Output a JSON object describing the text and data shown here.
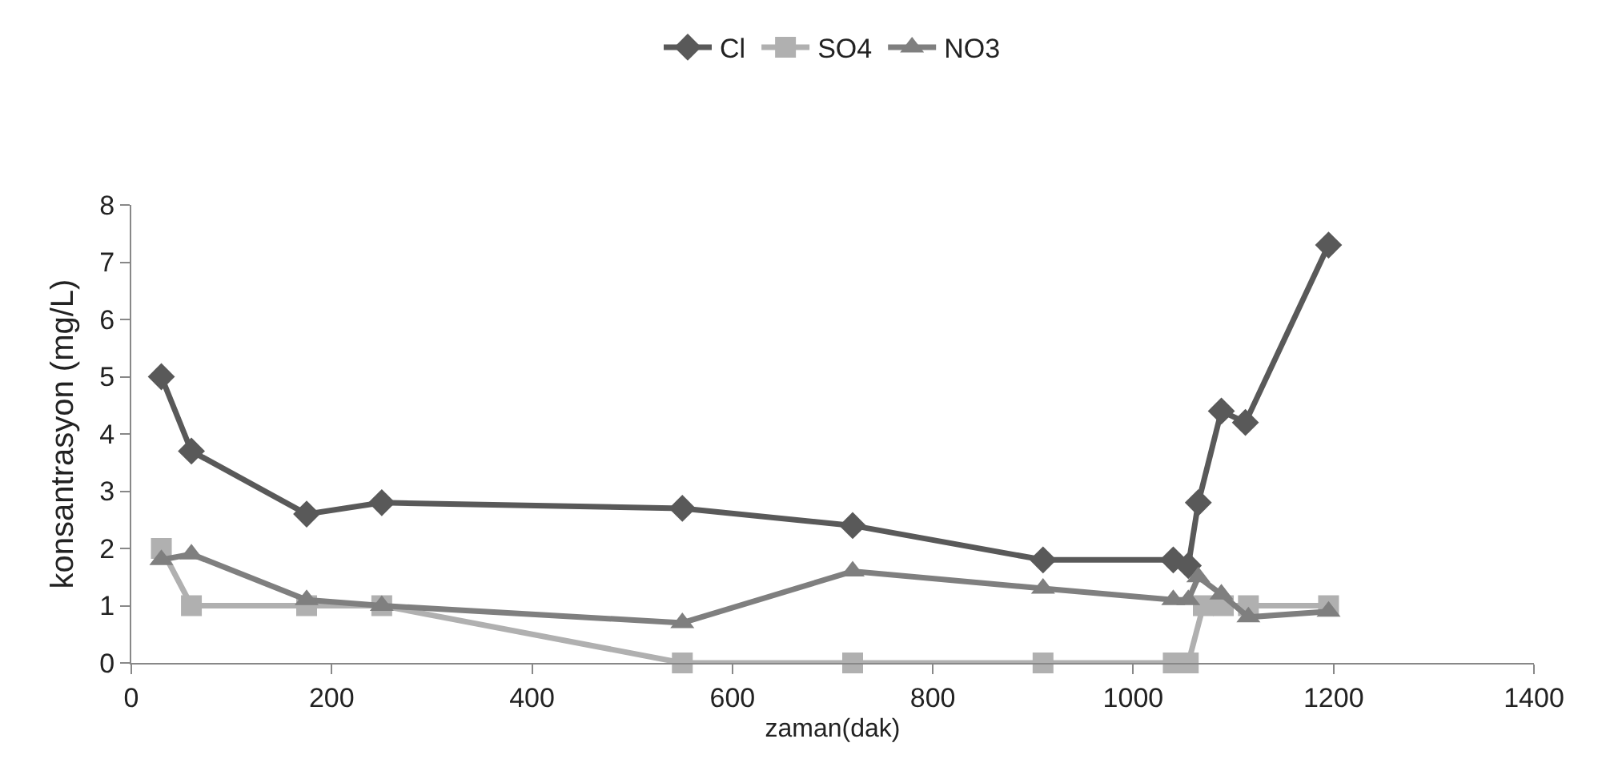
{
  "chart_data": {
    "type": "line",
    "xlabel": "zaman(dak)",
    "ylabel": "konsantrasyon (mg/L)",
    "xlim": [
      0,
      1400
    ],
    "xticks": [
      0,
      200,
      400,
      600,
      800,
      1000,
      1200,
      1400
    ],
    "ylim": [
      0,
      8
    ],
    "yticks": [
      0,
      1,
      2,
      3,
      4,
      5,
      6,
      7,
      8
    ],
    "grid": false,
    "legend": "top",
    "line_style": "solid",
    "series": [
      {
        "name": "Cl",
        "color": "#595959",
        "marker": "diamond",
        "x": [
          30,
          60,
          175,
          250,
          550,
          720,
          910,
          1040,
          1055,
          1065,
          1088,
          1112,
          1195
        ],
        "values": [
          5,
          3.7,
          2.6,
          2.8,
          2.7,
          2.4,
          1.8,
          1.8,
          1.7,
          2.8,
          4.4,
          4.2,
          7.3
        ]
      },
      {
        "name": "SO4",
        "color": "#b0b0b0",
        "marker": "square",
        "x": [
          30,
          60,
          175,
          250,
          550,
          720,
          910,
          1040,
          1055,
          1070,
          1090,
          1115,
          1195
        ],
        "values": [
          2,
          1,
          1,
          1,
          0,
          0,
          0,
          0,
          0,
          1,
          1,
          1,
          1
        ]
      },
      {
        "name": "NO3",
        "color": "#7f7f7f",
        "marker": "triangle",
        "x": [
          30,
          60,
          175,
          250,
          550,
          720,
          910,
          1040,
          1055,
          1065,
          1088,
          1115,
          1195
        ],
        "values": [
          1.8,
          1.9,
          1.1,
          1.0,
          0.7,
          1.6,
          1.3,
          1.1,
          1.1,
          1.5,
          1.2,
          0.8,
          0.9
        ]
      }
    ]
  }
}
